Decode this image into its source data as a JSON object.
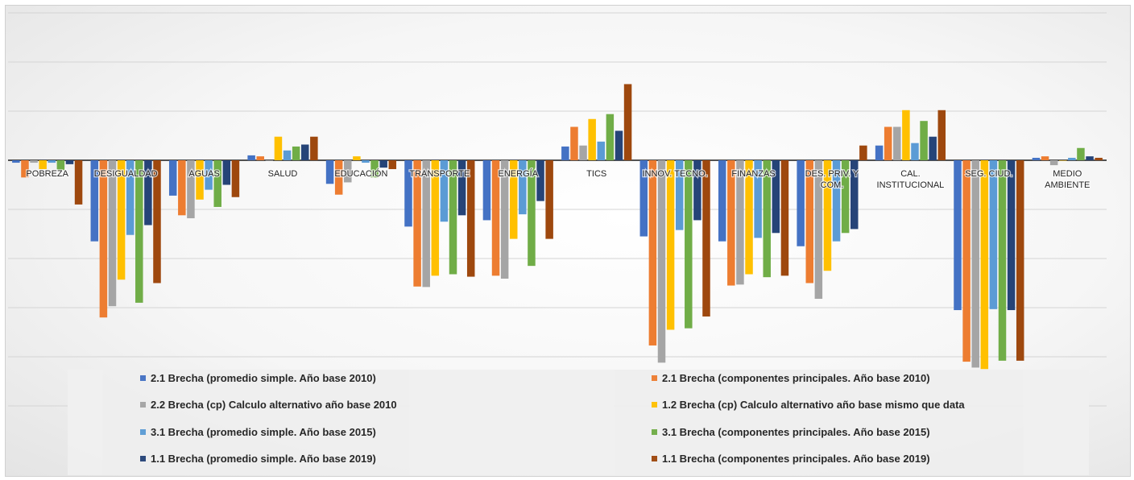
{
  "chart_data": {
    "type": "bar",
    "title": "",
    "xlabel": "",
    "ylabel": "",
    "grid": true,
    "legend_position": "bottom",
    "ylim": [
      -6.3,
      3.1
    ],
    "gridlines": [
      -5,
      -4,
      -3,
      -2,
      -1,
      0,
      1,
      2,
      3
    ],
    "categories": [
      "POBREZA",
      "DESIGUALDAD",
      "AGUAS",
      "SALUD",
      "EDUCACIÓN",
      "TRANSPORTE",
      "ENERGÍA",
      "TICS",
      "INNOV. TECNO.",
      "FINANZAS",
      "DES. PRIV. Y COM.",
      "CAL. INSTITUCIONAL",
      "SEG. CIUD.",
      "MEDIO AMBIENTE"
    ],
    "series": [
      {
        "name": "2.1 Brecha (promedio simple. Año base 2010)",
        "color": "#4472C4",
        "values": [
          -0.05,
          -1.65,
          -0.72,
          0.1,
          -0.48,
          -1.35,
          -1.22,
          0.28,
          -1.55,
          -1.65,
          -1.75,
          0.3,
          -3.05,
          0.05
        ]
      },
      {
        "name": "2.1 Brecha (componentes principales. Año base 2010)",
        "color": "#ED7D31",
        "values": [
          -0.35,
          -3.2,
          -1.12,
          0.08,
          -0.7,
          -2.57,
          -2.35,
          0.68,
          -3.77,
          -2.55,
          -2.5,
          0.68,
          -4.1,
          0.08
        ]
      },
      {
        "name": "2.2 Brecha (cp) Calculo alternativo año base 2010",
        "color": "#A5A5A5",
        "values": [
          -0.05,
          -2.97,
          -1.18,
          0.0,
          -0.45,
          -2.58,
          -2.41,
          0.3,
          -4.12,
          -2.53,
          -2.82,
          0.68,
          -4.22,
          -0.1
        ]
      },
      {
        "name": "1.2 Brecha (cp) Calculo alternativo año base mismo que data",
        "color": "#FFC000",
        "values": [
          -0.18,
          -2.43,
          -0.8,
          0.48,
          0.08,
          -2.35,
          -1.6,
          0.84,
          -3.45,
          -2.32,
          -2.25,
          1.02,
          -4.25,
          0.0
        ]
      },
      {
        "name": "3.1 Brecha (promedio simple. Año base 2015)",
        "color": "#5B9BD5",
        "values": [
          -0.05,
          -1.52,
          -0.6,
          0.2,
          -0.05,
          -1.25,
          -1.1,
          0.38,
          -1.42,
          -1.58,
          -1.65,
          0.35,
          -3.03,
          0.05
        ]
      },
      {
        "name": "3.1 Brecha (componentes principales. Año base 2015)",
        "color": "#70AD47",
        "values": [
          -0.2,
          -2.9,
          -0.95,
          0.28,
          -0.35,
          -2.32,
          -2.15,
          0.94,
          -3.42,
          -2.38,
          -1.48,
          0.8,
          -4.08,
          0.25
        ]
      },
      {
        "name": "1.1 Brecha (promedio simple. Año base 2019)",
        "color": "#264478",
        "values": [
          -0.08,
          -1.32,
          -0.5,
          0.32,
          -0.15,
          -1.12,
          -0.83,
          0.6,
          -1.22,
          -1.48,
          -1.4,
          0.48,
          -3.05,
          0.08
        ]
      },
      {
        "name": "1.1 Brecha (componentes principales. Año base 2019)",
        "color": "#9E480E",
        "values": [
          -0.9,
          -2.5,
          -0.75,
          0.48,
          -0.18,
          -2.37,
          -1.6,
          1.55,
          -3.18,
          -2.35,
          0.3,
          1.02,
          -4.08,
          0.05
        ]
      }
    ]
  }
}
